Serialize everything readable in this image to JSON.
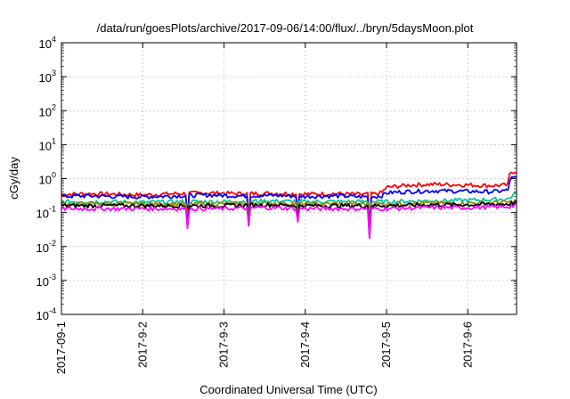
{
  "chart_data": {
    "type": "line",
    "title": "/data/run/goesPlots/archive/2017-09-06/14:00/flux/../bryn/5daysMoon.plot",
    "xlabel": "Coordinated Universal Time (UTC)",
    "ylabel": "cGy/day",
    "yscale": "log",
    "ylim": [
      0.0001,
      10000
    ],
    "xlim": [
      0,
      5.6
    ],
    "grid": true,
    "x_ticks": [
      {
        "x": 0,
        "label": "2017-09-1"
      },
      {
        "x": 1,
        "label": "2017-9-2"
      },
      {
        "x": 2,
        "label": "2017-9-3"
      },
      {
        "x": 3,
        "label": "2017-9-4"
      },
      {
        "x": 4,
        "label": "2017-9-5"
      },
      {
        "x": 5,
        "label": "2017-9-6"
      }
    ],
    "y_ticks": [
      {
        "base": "10",
        "exp": "4",
        "v": 10000
      },
      {
        "base": "10",
        "exp": "3",
        "v": 1000
      },
      {
        "base": "10",
        "exp": "2",
        "v": 100
      },
      {
        "base": "10",
        "exp": "1",
        "v": 10
      },
      {
        "base": "10",
        "exp": "0",
        "v": 1
      },
      {
        "base": "10",
        "exp": "-1",
        "v": 0.1
      },
      {
        "base": "10",
        "exp": "-2",
        "v": 0.01
      },
      {
        "base": "10",
        "exp": "-3",
        "v": 0.001
      },
      {
        "base": "10",
        "exp": "-4",
        "v": 0.0001
      }
    ],
    "series": [
      {
        "color": "#ff0000",
        "x": [
          0,
          0.3,
          0.6,
          1.0,
          1.4,
          1.8,
          2.2,
          2.6,
          3.0,
          3.4,
          3.7,
          3.9,
          3.95,
          4.0,
          4.3,
          4.6,
          5.0,
          5.3,
          5.5,
          5.52,
          5.6
        ],
        "y": [
          0.34,
          0.36,
          0.35,
          0.33,
          0.36,
          0.38,
          0.36,
          0.37,
          0.35,
          0.36,
          0.34,
          0.36,
          0.4,
          0.55,
          0.65,
          0.68,
          0.65,
          0.62,
          0.65,
          1.55,
          1.65
        ]
      },
      {
        "color": "#0000ff",
        "x": [
          0,
          0.3,
          0.6,
          1.0,
          1.4,
          1.8,
          2.2,
          2.6,
          3.0,
          3.4,
          3.7,
          3.9,
          3.95,
          4.0,
          4.3,
          4.6,
          5.0,
          5.3,
          5.5,
          5.52,
          5.6
        ],
        "y": [
          0.3,
          0.31,
          0.3,
          0.29,
          0.31,
          0.33,
          0.31,
          0.32,
          0.3,
          0.31,
          0.29,
          0.3,
          0.32,
          0.38,
          0.42,
          0.44,
          0.42,
          0.41,
          0.45,
          1.0,
          1.05
        ]
      },
      {
        "color": "#00c8a0",
        "x": [
          0,
          0.5,
          1.0,
          1.5,
          2.0,
          2.5,
          3.0,
          3.5,
          4.0,
          4.5,
          5.0,
          5.5,
          5.6
        ],
        "y": [
          0.21,
          0.21,
          0.2,
          0.21,
          0.21,
          0.22,
          0.21,
          0.21,
          0.21,
          0.22,
          0.23,
          0.25,
          0.38
        ]
      },
      {
        "color": "#9a8a00",
        "x": [
          0,
          0.5,
          1.0,
          1.5,
          2.0,
          2.5,
          3.0,
          3.5,
          4.0,
          4.5,
          5.0,
          5.5,
          5.6
        ],
        "y": [
          0.18,
          0.18,
          0.18,
          0.18,
          0.18,
          0.19,
          0.18,
          0.18,
          0.18,
          0.19,
          0.19,
          0.2,
          0.22
        ]
      },
      {
        "color": "#000000",
        "x": [
          0,
          0.5,
          1.0,
          1.5,
          2.0,
          2.5,
          3.0,
          3.5,
          4.0,
          4.5,
          5.0,
          5.5,
          5.6
        ],
        "y": [
          0.16,
          0.16,
          0.16,
          0.16,
          0.16,
          0.17,
          0.16,
          0.16,
          0.16,
          0.17,
          0.17,
          0.18,
          0.2
        ]
      },
      {
        "color": "#ff00ff",
        "x": [
          0,
          0.5,
          1.0,
          1.5,
          2.0,
          2.5,
          3.0,
          3.5,
          4.0,
          4.5,
          5.0,
          5.5,
          5.6
        ],
        "y": [
          0.13,
          0.13,
          0.13,
          0.13,
          0.13,
          0.14,
          0.13,
          0.13,
          0.13,
          0.14,
          0.14,
          0.15,
          0.17
        ]
      }
    ],
    "dips": [
      {
        "x": 1.55,
        "y": 0.06
      },
      {
        "x": 2.3,
        "y": 0.055
      },
      {
        "x": 2.9,
        "y": 0.075
      },
      {
        "x": 3.8,
        "y": 0.025
      }
    ]
  }
}
